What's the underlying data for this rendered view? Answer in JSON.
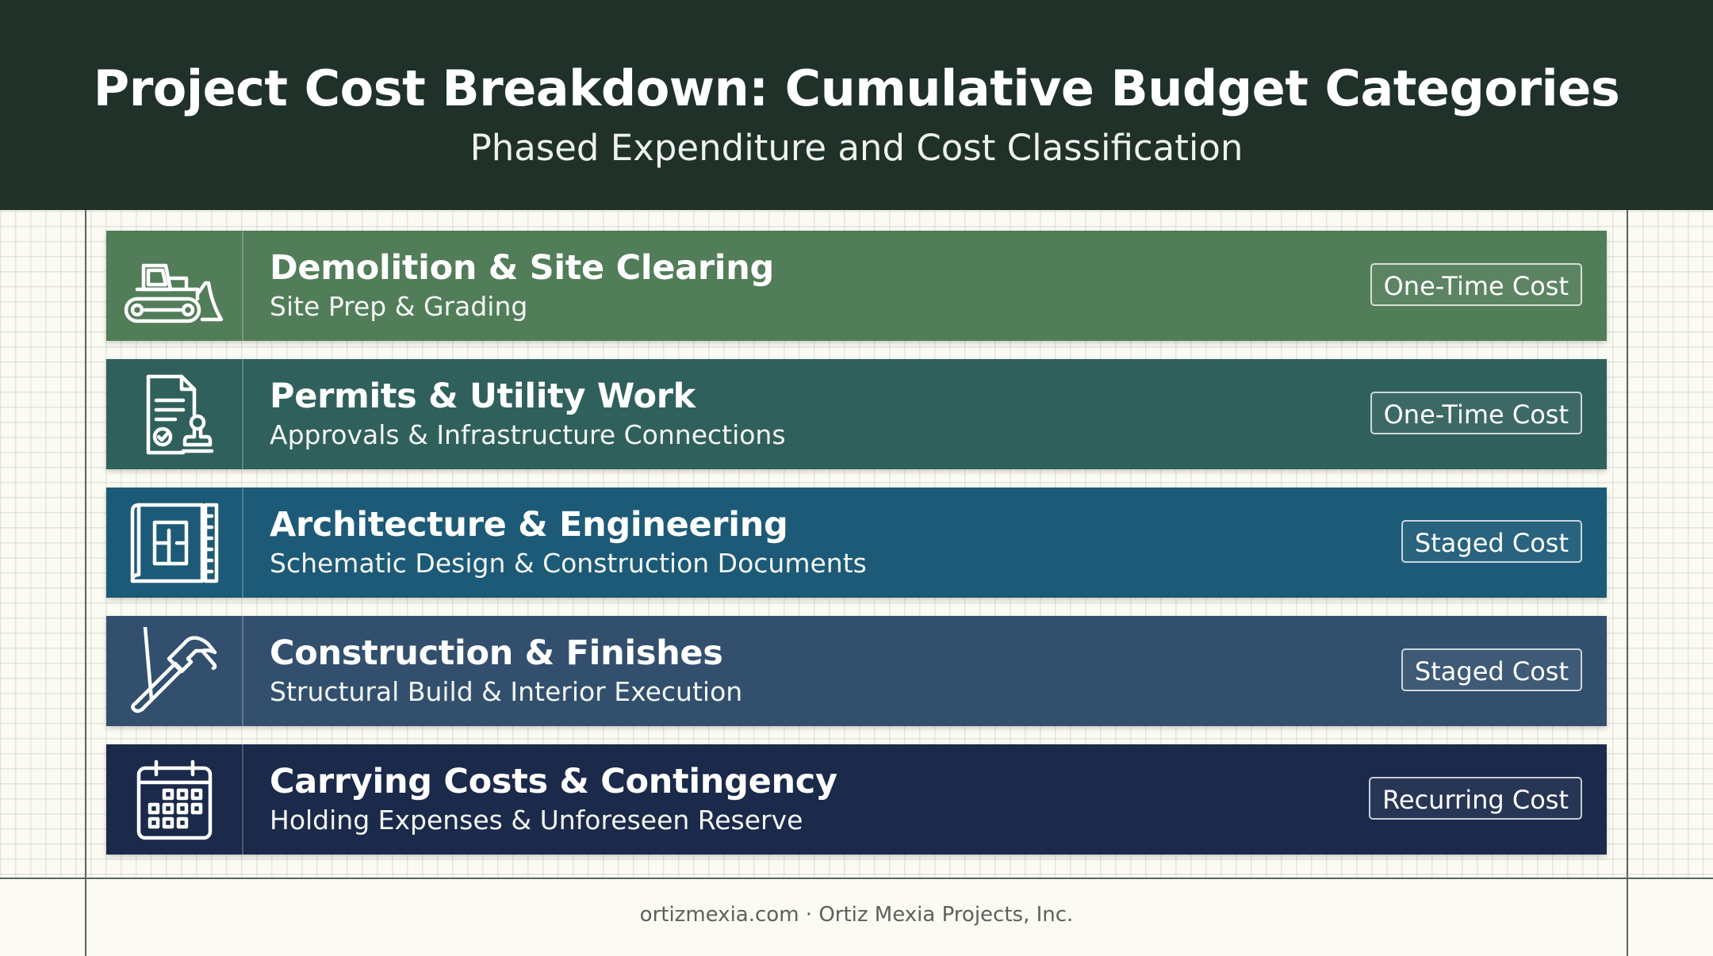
{
  "header": {
    "title": "Project Cost Breakdown: Cumulative Budget Categories",
    "subtitle": "Phased Expenditure and Cost Classification"
  },
  "categories": [
    {
      "title": "Demolition & Site Clearing",
      "subtitle": "Site Prep & Grading",
      "badge": "One-Time Cost",
      "icon": "bulldozer-icon",
      "color": "#527d59"
    },
    {
      "title": "Permits & Utility Work",
      "subtitle": "Approvals & Infrastructure Connections",
      "badge": "One-Time Cost",
      "icon": "permit-document-icon",
      "color": "#30605c"
    },
    {
      "title": "Architecture & Engineering",
      "subtitle": "Schematic Design & Construction Documents",
      "badge": "Staged Cost",
      "icon": "blueprint-icon",
      "color": "#1c5a77"
    },
    {
      "title": "Construction & Finishes",
      "subtitle": "Structural Build & Interior Execution",
      "badge": "Staged Cost",
      "icon": "hammer-icon",
      "color": "#32506e"
    },
    {
      "title": "Carrying Costs & Contingency",
      "subtitle": "Holding Expenses & Unforeseen Reserve",
      "badge": "Recurring Cost",
      "icon": "calendar-icon",
      "color": "#1b2a4b"
    }
  ],
  "footer": {
    "text": "ortizmexia.com · Ortiz Mexia Projects, Inc."
  },
  "colors": {
    "header_bg": "#1f3129",
    "page_bg": "#fbfaf3"
  }
}
